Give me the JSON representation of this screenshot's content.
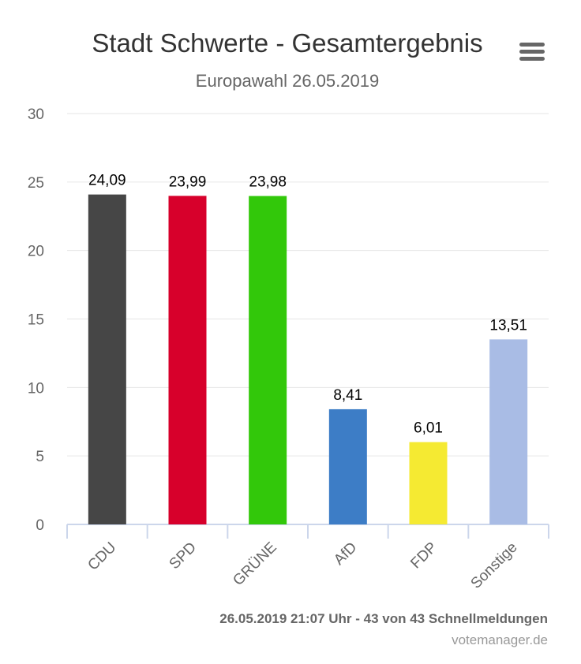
{
  "menu": {
    "icon": "hamburger-menu-icon"
  },
  "chart_data": {
    "type": "bar",
    "title": "Stadt Schwerte - Gesamtergebnis",
    "subtitle": "Europawahl 26.05.2019",
    "xlabel": "",
    "ylabel": "",
    "ylim": [
      0,
      30
    ],
    "yticks": [
      0,
      5,
      10,
      15,
      20,
      25,
      30
    ],
    "grid": true,
    "categories": [
      "CDU",
      "SPD",
      "GRÜNE",
      "AfD",
      "FDP",
      "Sonstige"
    ],
    "values": [
      24.09,
      23.99,
      23.98,
      8.41,
      6.01,
      13.51
    ],
    "data_labels": [
      "24,09",
      "23,99",
      "23,98",
      "8,41",
      "6,01",
      "13,51"
    ],
    "colors": [
      "#464646",
      "#d7002b",
      "#32c80a",
      "#3d7dc6",
      "#f5ea32",
      "#a9bce5"
    ]
  },
  "credits": {
    "status": "26.05.2019 21:07 Uhr - 43 von 43 Schnellmeldungen",
    "source": "votemanager.de"
  }
}
